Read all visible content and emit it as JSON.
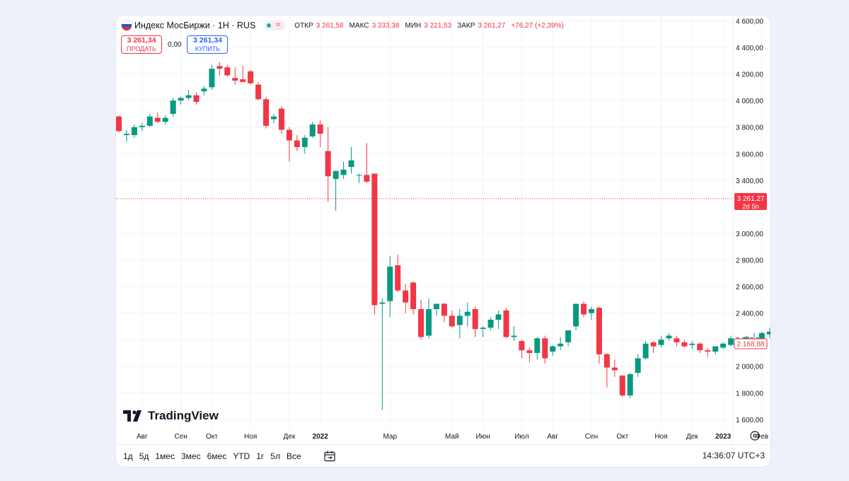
{
  "legend": {
    "title": "Индекс МосБиржи · 1H · RUS",
    "ohlc": [
      {
        "key": "ОТКР",
        "value": "3 261,58"
      },
      {
        "key": "МАКС",
        "value": "3 333,38"
      },
      {
        "key": "МИН",
        "value": "3 221,53"
      },
      {
        "key": "ЗАКР",
        "value": "3 261,27"
      }
    ],
    "change": "+76,27 (+2,39%)",
    "flag_icon": "russia-flag-icon",
    "status_icon": "market-status-icon"
  },
  "trade": {
    "sell_price": "3 261,34",
    "sell_label": "ПРОДАТЬ",
    "spread": "0,00",
    "buy_price": "3 261,34",
    "buy_label": "КУПИТЬ"
  },
  "price_labels": {
    "current": "3 261,27",
    "countdown": "2d 5h",
    "last": "2 168,88"
  },
  "logo_text": "TradingView",
  "ranges": [
    "1д",
    "5д",
    "1мес",
    "3мес",
    "6мес",
    "YTD",
    "1г",
    "5л",
    "Все"
  ],
  "clock": "14:36:07 UTC+3",
  "colors": {
    "up": "#089981",
    "down": "#f23645",
    "grid": "#f0f3fa",
    "text": "#131722"
  },
  "chart_data": {
    "type": "candlestick",
    "y_ticks": [
      "4 600,00",
      "4 400,00",
      "4 200,00",
      "4 000,00",
      "3 800,00",
      "3 600,00",
      "3 400,00",
      "3 000,00",
      "2 800,00",
      "2 600,00",
      "2 400,00",
      "2 200,00",
      "2 000,00",
      "1 800,00",
      "1 600,00"
    ],
    "y_tick_values": [
      4600,
      4400,
      4200,
      4000,
      3800,
      3600,
      3400,
      3000,
      2800,
      2600,
      2400,
      2200,
      2000,
      1800,
      1600
    ],
    "ylim": [
      1530,
      4640
    ],
    "x_labels": [
      {
        "label": "Авг",
        "bar": 3,
        "bold": false
      },
      {
        "label": "Сен",
        "bar": 8,
        "bold": false
      },
      {
        "label": "Окт",
        "bar": 12,
        "bold": false
      },
      {
        "label": "Ноя",
        "bar": 17,
        "bold": false
      },
      {
        "label": "Дек",
        "bar": 22,
        "bold": false
      },
      {
        "label": "2022",
        "bar": 26,
        "bold": true
      },
      {
        "label": "Мар",
        "bar": 35,
        "bold": false
      },
      {
        "label": "Май",
        "bar": 43,
        "bold": false
      },
      {
        "label": "Июн",
        "bar": 47,
        "bold": false
      },
      {
        "label": "Июл",
        "bar": 52,
        "bold": false
      },
      {
        "label": "Авг",
        "bar": 56,
        "bold": false
      },
      {
        "label": "Сен",
        "bar": 61,
        "bold": false
      },
      {
        "label": "Окт",
        "bar": 65,
        "bold": false
      },
      {
        "label": "Ноя",
        "bar": 70,
        "bold": false
      },
      {
        "label": "Дек",
        "bar": 74,
        "bold": false
      },
      {
        "label": "2023",
        "bar": 78,
        "bold": true
      },
      {
        "label": "Фев",
        "bar": 83,
        "bold": false
      }
    ],
    "current_price": 3261.27,
    "last_price": 2168.88,
    "candles": [
      [
        3880,
        3890,
        3760,
        3770
      ],
      [
        3740,
        3780,
        3690,
        3750
      ],
      [
        3740,
        3820,
        3720,
        3800
      ],
      [
        3800,
        3830,
        3770,
        3810
      ],
      [
        3810,
        3900,
        3800,
        3880
      ],
      [
        3870,
        3910,
        3830,
        3840
      ],
      [
        3840,
        3890,
        3820,
        3870
      ],
      [
        3900,
        4020,
        3880,
        4000
      ],
      [
        4000,
        4030,
        3970,
        4020
      ],
      [
        4020,
        4080,
        4000,
        4040
      ],
      [
        4040,
        4060,
        3970,
        3990
      ],
      [
        4070,
        4110,
        4040,
        4090
      ],
      [
        4100,
        4270,
        4080,
        4240
      ],
      [
        4260,
        4290,
        4190,
        4240
      ],
      [
        4250,
        4270,
        4180,
        4190
      ],
      [
        4170,
        4250,
        4120,
        4150
      ],
      [
        4160,
        4260,
        4140,
        4140
      ],
      [
        4220,
        4230,
        4120,
        4130
      ],
      [
        4120,
        4140,
        4000,
        4010
      ],
      [
        4010,
        4030,
        3790,
        3810
      ],
      [
        3860,
        3900,
        3830,
        3880
      ],
      [
        3940,
        3960,
        3750,
        3780
      ],
      [
        3780,
        3800,
        3540,
        3700
      ],
      [
        3700,
        3740,
        3620,
        3650
      ],
      [
        3650,
        3740,
        3600,
        3720
      ],
      [
        3730,
        3840,
        3720,
        3820
      ],
      [
        3820,
        3850,
        3650,
        3750
      ],
      [
        3620,
        3800,
        3240,
        3430
      ],
      [
        3410,
        3460,
        3170,
        3470
      ],
      [
        3440,
        3540,
        3410,
        3480
      ],
      [
        3500,
        3650,
        3450,
        3550
      ],
      [
        3440,
        3450,
        3380,
        3440
      ],
      [
        3440,
        3680,
        3380,
        3390
      ],
      [
        3450,
        3450,
        2390,
        2460
      ],
      [
        2470,
        2510,
        1670,
        2480
      ],
      [
        2490,
        2830,
        2370,
        2750
      ],
      [
        2760,
        2840,
        2560,
        2570
      ],
      [
        2570,
        2620,
        2400,
        2480
      ],
      [
        2630,
        2640,
        2390,
        2430
      ],
      [
        2430,
        2500,
        2200,
        2220
      ],
      [
        2230,
        2510,
        2210,
        2430
      ],
      [
        2430,
        2470,
        2380,
        2470
      ],
      [
        2470,
        2480,
        2330,
        2380
      ],
      [
        2380,
        2420,
        2290,
        2300
      ],
      [
        2310,
        2430,
        2210,
        2380
      ],
      [
        2380,
        2480,
        2300,
        2410
      ],
      [
        2430,
        2450,
        2220,
        2280
      ],
      [
        2280,
        2300,
        2220,
        2290
      ],
      [
        2290,
        2370,
        2270,
        2350
      ],
      [
        2350,
        2420,
        2280,
        2390
      ],
      [
        2420,
        2440,
        2210,
        2220
      ],
      [
        2220,
        2300,
        2190,
        2230
      ],
      [
        2190,
        2200,
        2060,
        2120
      ],
      [
        2120,
        2140,
        2030,
        2100
      ],
      [
        2100,
        2220,
        2050,
        2210
      ],
      [
        2210,
        2230,
        2020,
        2060
      ],
      [
        2110,
        2160,
        2080,
        2150
      ],
      [
        2150,
        2220,
        2120,
        2170
      ],
      [
        2180,
        2250,
        2150,
        2270
      ],
      [
        2300,
        2470,
        2270,
        2470
      ],
      [
        2470,
        2490,
        2370,
        2390
      ],
      [
        2400,
        2450,
        2350,
        2430
      ],
      [
        2440,
        2450,
        2020,
        2090
      ],
      [
        2090,
        2100,
        1840,
        1990
      ],
      [
        1990,
        2050,
        1920,
        1970
      ],
      [
        1930,
        1930,
        1770,
        1780
      ],
      [
        1780,
        1950,
        1760,
        1940
      ],
      [
        1950,
        2090,
        1920,
        2060
      ],
      [
        2060,
        2190,
        2050,
        2170
      ],
      [
        2180,
        2190,
        2100,
        2150
      ],
      [
        2160,
        2230,
        2140,
        2200
      ],
      [
        2210,
        2250,
        2190,
        2230
      ],
      [
        2210,
        2230,
        2150,
        2180
      ],
      [
        2180,
        2200,
        2140,
        2150
      ],
      [
        2160,
        2190,
        2130,
        2170
      ],
      [
        2170,
        2180,
        2100,
        2120
      ],
      [
        2120,
        2140,
        2070,
        2110
      ],
      [
        2110,
        2150,
        2090,
        2150
      ],
      [
        2140,
        2180,
        2130,
        2170
      ],
      [
        2160,
        2230,
        2150,
        2210
      ],
      [
        2190,
        2210,
        2150,
        2170
      ],
      [
        2170,
        2230,
        2160,
        2220
      ],
      [
        2170,
        2250,
        2140,
        2190
      ],
      [
        2180,
        2260,
        2170,
        2250
      ],
      [
        2240,
        2290,
        2210,
        2260
      ],
      [
        2280,
        2290,
        2150,
        2170
      ]
    ]
  }
}
